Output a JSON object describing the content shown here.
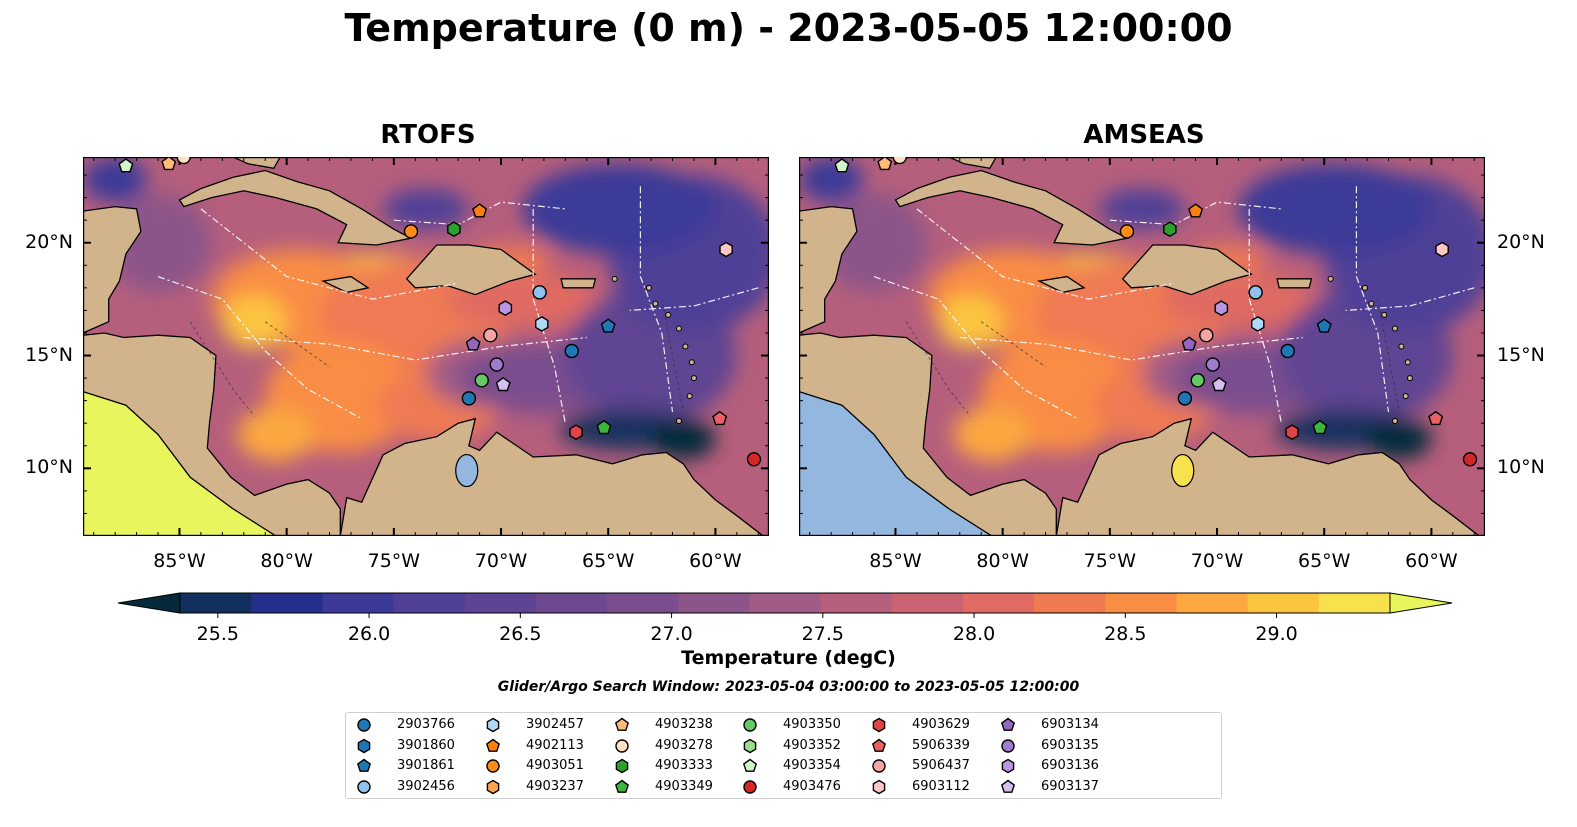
{
  "title": "Temperature (0 m) - 2023-05-05 12:00:00",
  "panels": [
    {
      "id": "rtofs",
      "title": "RTOFS",
      "land_west": "#e8f55c"
    },
    {
      "id": "amseas",
      "title": "AMSEAS",
      "land_west": "#94b7e0"
    }
  ],
  "map": {
    "lon_range": [
      -89.5,
      -57.5
    ],
    "lat_range": [
      7,
      23.8
    ],
    "lon_ticks": [
      {
        "value": -85,
        "label": "85°W"
      },
      {
        "value": -80,
        "label": "80°W"
      },
      {
        "value": -75,
        "label": "75°W"
      },
      {
        "value": -70,
        "label": "70°W"
      },
      {
        "value": -65,
        "label": "65°W"
      },
      {
        "value": -60,
        "label": "60°W"
      }
    ],
    "lat_ticks": [
      {
        "value": 10,
        "label": "10°N"
      },
      {
        "value": 15,
        "label": "15°N"
      },
      {
        "value": 20,
        "label": "20°N"
      }
    ],
    "land_color": "#d2b48c",
    "ocean_color": "#b65f7c"
  },
  "colorbar": {
    "label": "Temperature (degC)",
    "min": 25.375,
    "max": 29.375,
    "ticks": [
      {
        "value": 25.5,
        "label": "25.5"
      },
      {
        "value": 26.0,
        "label": "26.0"
      },
      {
        "value": 26.5,
        "label": "26.5"
      },
      {
        "value": 27.0,
        "label": "27.0"
      },
      {
        "value": 27.5,
        "label": "27.5"
      },
      {
        "value": 28.0,
        "label": "28.0"
      },
      {
        "value": 28.5,
        "label": "28.5"
      },
      {
        "value": 29.0,
        "label": "29.0"
      }
    ],
    "colors": [
      "#062a3a",
      "#12305e",
      "#232f8a",
      "#3b3a98",
      "#4f3f97",
      "#5e4493",
      "#6c4990",
      "#7a4e8e",
      "#8c5589",
      "#a25b85",
      "#b65f7c",
      "#c96371",
      "#df6b62",
      "#ef7a52",
      "#f98d44",
      "#fba840",
      "#fcc540",
      "#f7e24e",
      "#e8f55c"
    ]
  },
  "search_window": "Glider/Argo Search Window: 2023-05-04 03:00:00 to 2023-05-05 12:00:00",
  "legend": [
    {
      "id": "2903766",
      "shape": "circle",
      "color": "#1f77b4"
    },
    {
      "id": "3901860",
      "shape": "hexagon",
      "color": "#1f77b4"
    },
    {
      "id": "3901861",
      "shape": "pentagon",
      "color": "#1f77b4"
    },
    {
      "id": "3902456",
      "shape": "circle",
      "color": "#8fc3ec"
    },
    {
      "id": "3902457",
      "shape": "hexagon",
      "color": "#aed8f5"
    },
    {
      "id": "4902113",
      "shape": "pentagon",
      "color": "#ff7f0e"
    },
    {
      "id": "4903051",
      "shape": "circle",
      "color": "#ff8c1a"
    },
    {
      "id": "4903237",
      "shape": "hexagon",
      "color": "#ffa64d"
    },
    {
      "id": "4903238",
      "shape": "pentagon",
      "color": "#ffbb78"
    },
    {
      "id": "4903278",
      "shape": "circle",
      "color": "#ffe0c0"
    },
    {
      "id": "4903333",
      "shape": "hexagon",
      "color": "#2ca02c"
    },
    {
      "id": "4903349",
      "shape": "pentagon",
      "color": "#3cb53c"
    },
    {
      "id": "4903350",
      "shape": "circle",
      "color": "#66c966"
    },
    {
      "id": "4903352",
      "shape": "hexagon",
      "color": "#98df8a"
    },
    {
      "id": "4903354",
      "shape": "pentagon",
      "color": "#cff5c8"
    },
    {
      "id": "4903476",
      "shape": "circle",
      "color": "#d62728"
    },
    {
      "id": "4903629",
      "shape": "hexagon",
      "color": "#e04446"
    },
    {
      "id": "5906339",
      "shape": "pentagon",
      "color": "#eb6062"
    },
    {
      "id": "5906437",
      "shape": "circle",
      "color": "#f4a6a6"
    },
    {
      "id": "6903112",
      "shape": "hexagon",
      "color": "#ffc6c6"
    },
    {
      "id": "6903134",
      "shape": "pentagon",
      "color": "#9467bd"
    },
    {
      "id": "6903135",
      "shape": "circle",
      "color": "#a07cd0"
    },
    {
      "id": "6903136",
      "shape": "hexagon",
      "color": "#b897e3"
    },
    {
      "id": "6903137",
      "shape": "pentagon",
      "color": "#d4bff2"
    }
  ],
  "markers": [
    {
      "id": "4903354",
      "lon": -87.5,
      "lat": 23.4
    },
    {
      "id": "4903238",
      "lon": -85.5,
      "lat": 23.5
    },
    {
      "id": "4903278",
      "lon": -84.8,
      "lat": 23.8
    },
    {
      "id": "4903051",
      "lon": -74.2,
      "lat": 20.5
    },
    {
      "id": "4903333",
      "lon": -72.2,
      "lat": 20.6
    },
    {
      "id": "4902113",
      "lon": -71.0,
      "lat": 21.4
    },
    {
      "id": "6903112",
      "lon": -59.5,
      "lat": 19.7
    },
    {
      "id": "3902456",
      "lon": -68.2,
      "lat": 17.8
    },
    {
      "id": "6903136",
      "lon": -69.8,
      "lat": 17.1
    },
    {
      "id": "3902457",
      "lon": -68.1,
      "lat": 16.4
    },
    {
      "id": "3901861",
      "lon": -65.0,
      "lat": 16.3
    },
    {
      "id": "5906437",
      "lon": -70.5,
      "lat": 15.9
    },
    {
      "id": "6903134",
      "lon": -71.3,
      "lat": 15.5
    },
    {
      "id": "2903766",
      "lon": -66.7,
      "lat": 15.2
    },
    {
      "id": "6903135",
      "lon": -70.2,
      "lat": 14.6
    },
    {
      "id": "4903350",
      "lon": -70.9,
      "lat": 13.9
    },
    {
      "id": "6903137",
      "lon": -69.9,
      "lat": 13.7
    },
    {
      "id": "2903766",
      "lon": -71.5,
      "lat": 13.1
    },
    {
      "id": "5906339",
      "lon": -59.8,
      "lat": 12.2
    },
    {
      "id": "4903349",
      "lon": -65.2,
      "lat": 11.8
    },
    {
      "id": "4903629",
      "lon": -66.5,
      "lat": 11.6
    },
    {
      "id": "4903476",
      "lon": -58.2,
      "lat": 10.4
    }
  ]
}
